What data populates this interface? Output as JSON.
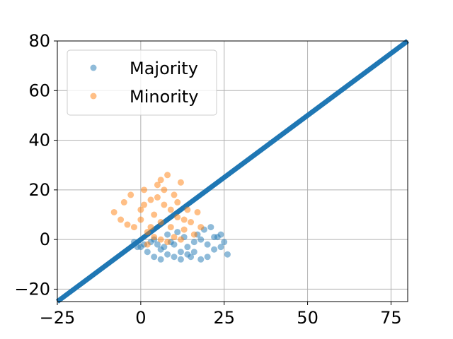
{
  "chart_data": {
    "type": "scatter",
    "title": "",
    "xlabel": "",
    "ylabel": "",
    "xlim": [
      -25,
      80
    ],
    "ylim": [
      -25,
      80
    ],
    "grid": true,
    "legend_position": "top-left",
    "xticks": [
      -25,
      0,
      25,
      50,
      75
    ],
    "xtick_labels": [
      "−25",
      "0",
      "25",
      "50",
      "75"
    ],
    "yticks": [
      -20,
      0,
      20,
      40,
      60,
      80
    ],
    "ytick_labels": [
      "−20",
      "0",
      "20",
      "40",
      "60",
      "80"
    ],
    "series": [
      {
        "name": "Majority",
        "color": "#1f77b4",
        "alpha": 0.5,
        "points": [
          [
            -2,
            -1
          ],
          [
            0,
            -3
          ],
          [
            2,
            -5
          ],
          [
            4,
            -7
          ],
          [
            6,
            -4
          ],
          [
            8,
            -6
          ],
          [
            10,
            -2
          ],
          [
            12,
            -5
          ],
          [
            14,
            -3
          ],
          [
            16,
            -1
          ],
          [
            18,
            0
          ],
          [
            20,
            -2
          ],
          [
            22,
            -4
          ],
          [
            24,
            -3
          ],
          [
            26,
            -6
          ],
          [
            18,
            -8
          ],
          [
            15,
            -7
          ],
          [
            11,
            3
          ],
          [
            13,
            1
          ],
          [
            17,
            2
          ],
          [
            19,
            4
          ],
          [
            21,
            5
          ],
          [
            23,
            1
          ],
          [
            25,
            -1
          ],
          [
            9,
            -1
          ],
          [
            7,
            -3
          ],
          [
            5,
            -2
          ],
          [
            3,
            -1
          ],
          [
            1,
            -2
          ],
          [
            -1,
            -3
          ],
          [
            12,
            -8
          ],
          [
            20,
            -7
          ],
          [
            22,
            1
          ],
          [
            24,
            2
          ],
          [
            16,
            -5
          ],
          [
            14,
            -6
          ],
          [
            10,
            -7
          ],
          [
            6,
            -8
          ],
          [
            8,
            2
          ],
          [
            4,
            0
          ]
        ]
      },
      {
        "name": "Minority",
        "color": "#ff7f0e",
        "alpha": 0.5,
        "points": [
          [
            -8,
            11
          ],
          [
            -6,
            8
          ],
          [
            -5,
            15
          ],
          [
            -3,
            18
          ],
          [
            -2,
            5
          ],
          [
            0,
            12
          ],
          [
            1,
            20
          ],
          [
            2,
            3
          ],
          [
            3,
            16
          ],
          [
            4,
            10
          ],
          [
            5,
            22
          ],
          [
            6,
            7
          ],
          [
            7,
            14
          ],
          [
            8,
            26
          ],
          [
            9,
            5
          ],
          [
            10,
            18
          ],
          [
            11,
            9
          ],
          [
            12,
            23
          ],
          [
            13,
            4
          ],
          [
            14,
            12
          ],
          [
            15,
            7
          ],
          [
            16,
            2
          ],
          [
            17,
            11
          ],
          [
            18,
            5
          ],
          [
            2,
            -2
          ],
          [
            4,
            1
          ],
          [
            6,
            0
          ],
          [
            8,
            -1
          ],
          [
            10,
            1
          ],
          [
            12,
            0
          ],
          [
            -4,
            6
          ],
          [
            0,
            8
          ],
          [
            3,
            5
          ],
          [
            5,
            17
          ],
          [
            7,
            20
          ],
          [
            9,
            12
          ],
          [
            11,
            15
          ],
          [
            13,
            8
          ],
          [
            1,
            14
          ],
          [
            6,
            24
          ]
        ]
      }
    ],
    "lines": [
      {
        "name": "",
        "color": "#1f77b4",
        "x": [
          -25,
          80
        ],
        "y": [
          -25,
          80
        ]
      }
    ]
  }
}
